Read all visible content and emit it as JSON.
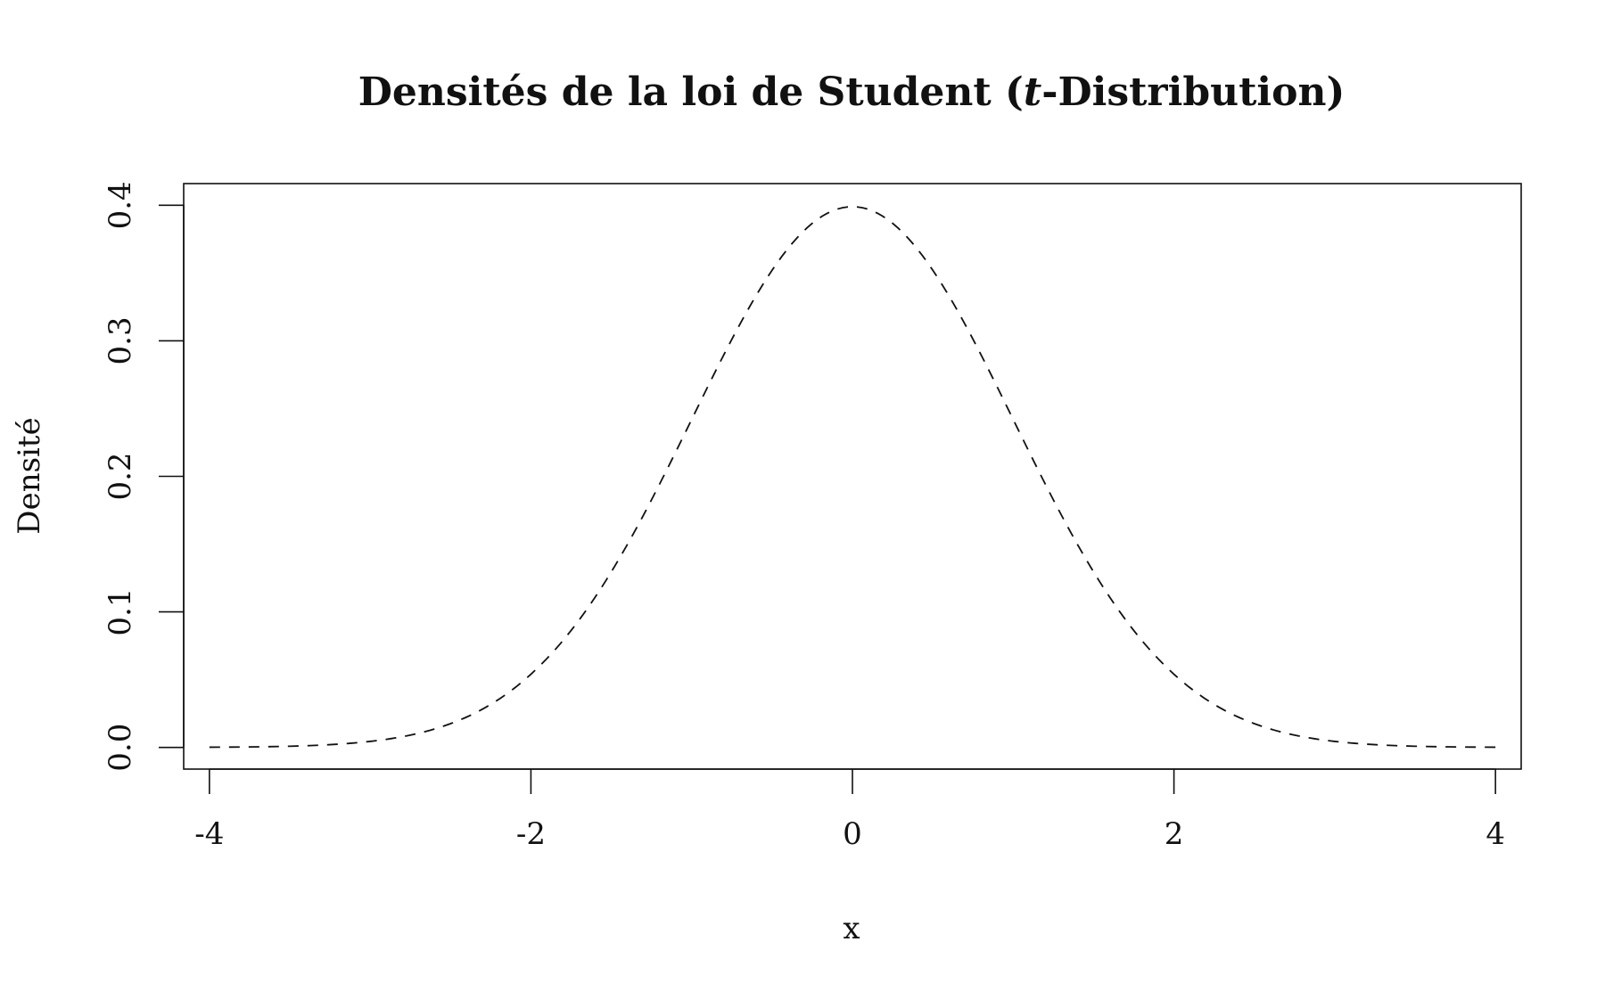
{
  "chart_data": {
    "type": "line",
    "title_parts": {
      "before": "Densités de la loi de Student (",
      "italic": "t",
      "after": "-Distribution)"
    },
    "xlabel": "x",
    "ylabel": "Densité",
    "xlim": [
      -4.16,
      4.16
    ],
    "ylim": [
      -0.016,
      0.416
    ],
    "x_ticks": [
      -4,
      -2,
      0,
      2,
      4
    ],
    "x_tick_labels": [
      "-4",
      "-2",
      "0",
      "2",
      "4"
    ],
    "y_ticks": [
      0.0,
      0.1,
      0.2,
      0.3,
      0.4
    ],
    "y_tick_labels": [
      "0.0",
      "0.1",
      "0.2",
      "0.3",
      "0.4"
    ],
    "grid": false,
    "series": [
      {
        "line_style": "dashed",
        "color": "#111111",
        "x": [
          -4.0,
          -3.5,
          -3.0,
          -2.75,
          -2.5,
          -2.25,
          -2.0,
          -1.75,
          -1.5,
          -1.25,
          -1.0,
          -0.75,
          -0.5,
          -0.25,
          0.0,
          0.25,
          0.5,
          0.75,
          1.0,
          1.25,
          1.5,
          1.75,
          2.0,
          2.25,
          2.5,
          2.75,
          3.0,
          3.5,
          4.0
        ],
        "y": [
          0.0001,
          0.0009,
          0.0044,
          0.0091,
          0.0175,
          0.0317,
          0.054,
          0.0863,
          0.1295,
          0.1826,
          0.242,
          0.3011,
          0.3521,
          0.3867,
          0.3989,
          0.3867,
          0.3521,
          0.3011,
          0.242,
          0.1826,
          0.1295,
          0.0863,
          0.054,
          0.0317,
          0.0175,
          0.0091,
          0.0044,
          0.0009,
          0.0001
        ]
      }
    ]
  }
}
